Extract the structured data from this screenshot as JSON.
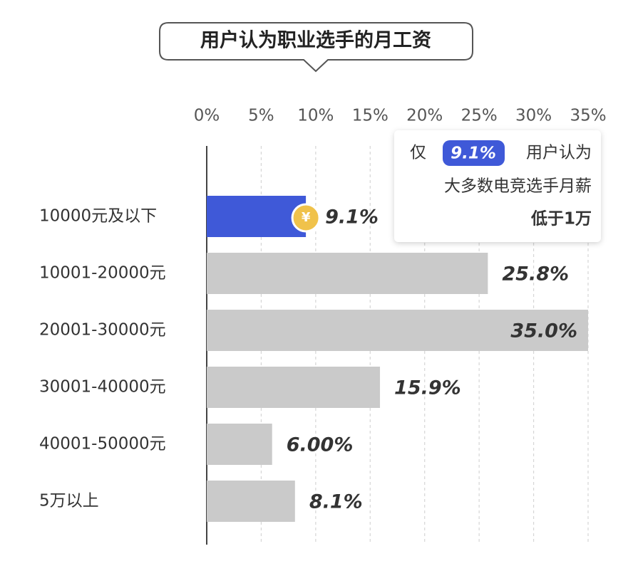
{
  "chart_data": {
    "type": "bar",
    "orientation": "horizontal",
    "title": "用户认为职业选手的月工资",
    "categories": [
      "10000元及以下",
      "10001-20000元",
      "20001-30000元",
      "30001-40000元",
      "40001-50000元",
      "5万以上"
    ],
    "values": [
      9.1,
      25.8,
      35.0,
      15.9,
      6.0,
      8.1
    ],
    "value_labels": [
      "9.1%",
      "25.8%",
      "35.0%",
      "15.9%",
      "6.00%",
      "8.1%"
    ],
    "colors": [
      "#3f59d8",
      "#cacaca",
      "#cacaca",
      "#cacaca",
      "#cacaca",
      "#cacaca"
    ],
    "xlim": [
      0,
      35
    ],
    "xticks": [
      {
        "value": 0,
        "label": "0%"
      },
      {
        "value": 5,
        "label": "5%"
      },
      {
        "value": 10,
        "label": "10%"
      },
      {
        "value": 15,
        "label": "15%"
      },
      {
        "value": 20,
        "label": "20%"
      },
      {
        "value": 25,
        "label": "25%"
      },
      {
        "value": 30,
        "label": "30%"
      },
      {
        "value": 35,
        "label": "35%"
      }
    ],
    "grid": true,
    "coin_label": "¥",
    "annotation": {
      "prefix": "仅",
      "highlight": "9.1%",
      "suffix": "用户认为",
      "line2": "大多数电竞选手月薪",
      "line3": "低于1万"
    }
  }
}
